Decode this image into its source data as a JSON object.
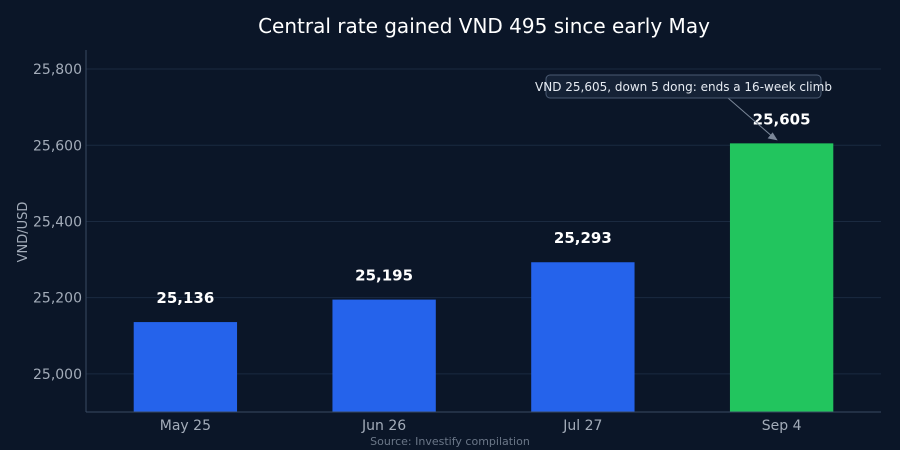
{
  "chart_data": {
    "type": "bar",
    "title": "Central rate gained VND 495 since early May",
    "ylabel": "VND/USD",
    "xlabel": "",
    "categories": [
      "May 25",
      "Jun 26",
      "Jul 27",
      "Sep 4"
    ],
    "values": [
      25136,
      25195,
      25293,
      25605
    ],
    "data_labels": [
      "25,136",
      "25,195",
      "25,293",
      "25,605"
    ],
    "ylim": [
      24900,
      25850
    ],
    "yticks": [
      25000,
      25200,
      25400,
      25600,
      25800
    ],
    "ytick_labels": [
      "25,000",
      "25,200",
      "25,400",
      "25,600",
      "25,800"
    ],
    "grid": true,
    "highlight_index": 3,
    "annotation": {
      "text": "VND 25,605, down 5 dong: ends a 16-week climb",
      "target_index": 3
    },
    "source": "Source: Investify compilation"
  },
  "colors": {
    "background": "#0b1628",
    "bar": "#2563eb",
    "bar_highlight": "#22c55e",
    "grid": "#1b2a40",
    "axis": "#3a4a62",
    "text": "#ffffff",
    "tick_text": "#a3acb9",
    "muted_text": "#6b7788",
    "annotation_bg": "#152236",
    "annotation_border": "#4a5a72"
  }
}
